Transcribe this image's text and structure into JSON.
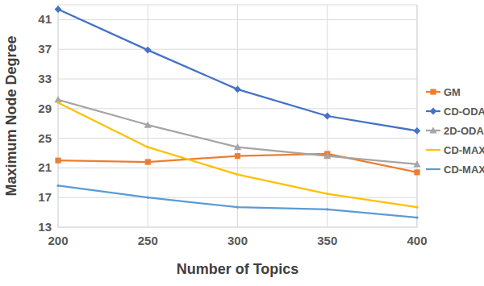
{
  "chart_data": {
    "type": "line",
    "x_label": "Number of Topics",
    "y_label": "Maximum Node Degree",
    "x": [
      200,
      250,
      300,
      350,
      400
    ],
    "xlim": [
      200,
      400
    ],
    "xticks": [
      200,
      250,
      300,
      350,
      400
    ],
    "ylim": [
      13,
      43
    ],
    "yticks": [
      13,
      17,
      21,
      25,
      29,
      33,
      37,
      41
    ],
    "grid": true,
    "legend": "right",
    "series": [
      {
        "name": "GM",
        "color": "#ed7d31",
        "marker": "square",
        "values": [
          22.0,
          21.8,
          22.6,
          22.9,
          20.4
        ]
      },
      {
        "name": "CD-ODA-II",
        "color": "#4472c4",
        "marker": "diamond",
        "values": [
          42.4,
          36.9,
          31.6,
          28.0,
          26.0
        ]
      },
      {
        "name": "2D-ODA",
        "color": "#a5a5a5",
        "marker": "triangle",
        "values": [
          30.2,
          26.8,
          23.8,
          22.6,
          21.5
        ]
      },
      {
        "name": "CD-MAX",
        "color": "#ffc000",
        "marker": "none",
        "values": [
          29.8,
          23.8,
          20.1,
          17.5,
          15.7
        ]
      },
      {
        "name": "CD-MAX-Ref",
        "color": "#5b9bd5",
        "marker": "none",
        "values": [
          18.6,
          17.0,
          15.7,
          15.4,
          14.3
        ]
      }
    ]
  }
}
